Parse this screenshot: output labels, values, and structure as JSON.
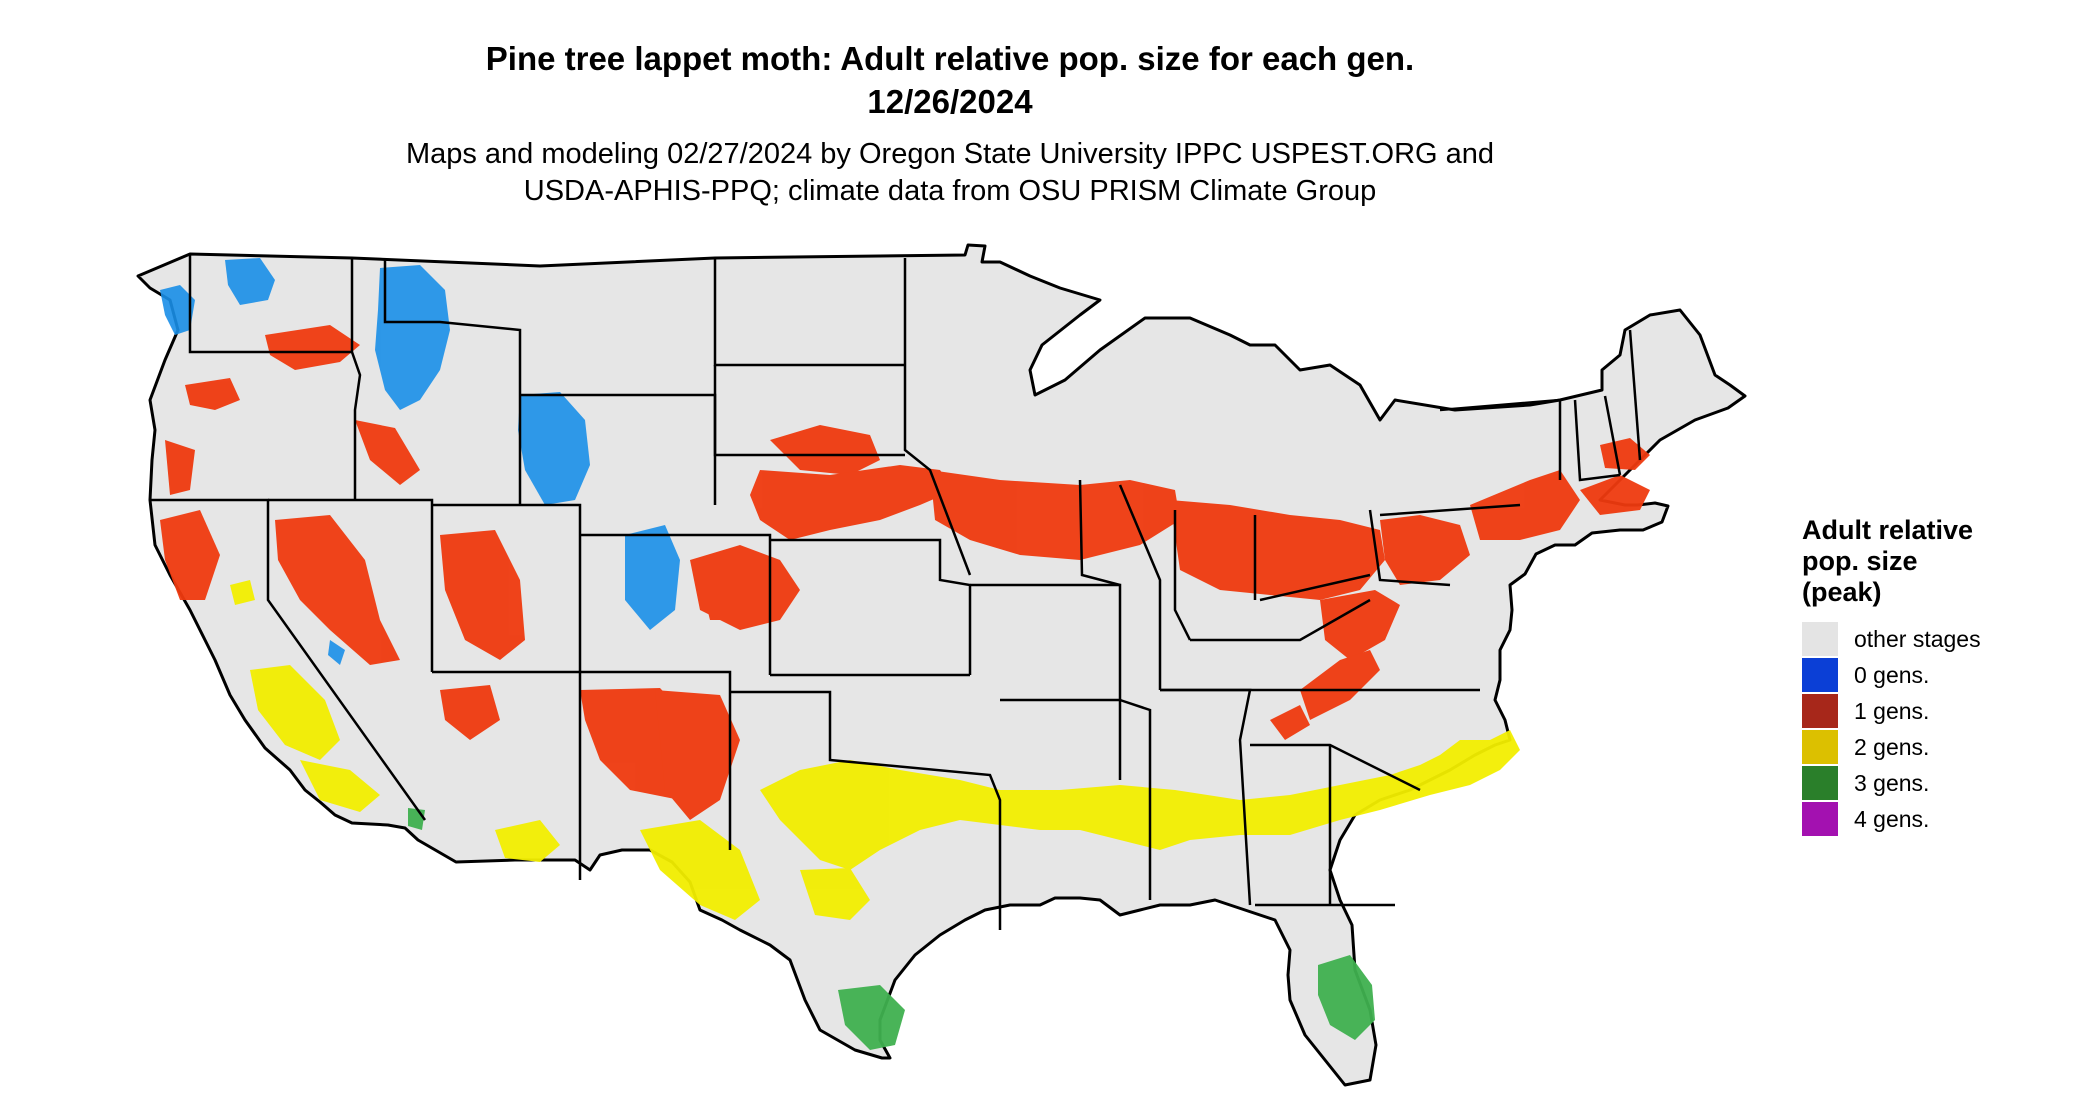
{
  "header": {
    "title_line1": "Pine tree lappet moth: Adult relative pop. size for each gen.",
    "title_line2": "12/26/2024",
    "subtitle_line1": "Maps and modeling 02/27/2024 by Oregon State University IPPC USPEST.ORG and",
    "subtitle_line2": "USDA-APHIS-PPQ; climate data from OSU PRISM Climate Group"
  },
  "map": {
    "region": "Contiguous United States",
    "base_color": "#e6e6e6",
    "border_color": "#000000",
    "bands": [
      {
        "generation": "0 gens.",
        "color": "#1a8fe8",
        "areas": [
          "Washington Cascades",
          "Idaho",
          "Montana Rockies",
          "Wyoming",
          "Colorado Rockies"
        ]
      },
      {
        "generation": "1 gens.",
        "color": "#ef3a0f",
        "areas": [
          "Oregon",
          "Nevada",
          "Utah",
          "Arizona",
          "New Mexico",
          "Nebraska",
          "Iowa",
          "Illinois",
          "Indiana",
          "Ohio",
          "Pennsylvania",
          "Kentucky",
          "Virginia",
          "New England"
        ]
      },
      {
        "generation": "2 gens.",
        "color": "#f2ee00",
        "areas": [
          "California",
          "Arizona",
          "Texas",
          "Oklahoma",
          "Arkansas",
          "Mississippi",
          "Alabama",
          "Georgia",
          "South Carolina",
          "North Carolina"
        ]
      },
      {
        "generation": "3 gens.",
        "color": "#3fb04f",
        "areas": [
          "South Texas",
          "South Florida"
        ]
      }
    ]
  },
  "legend": {
    "title_lines": [
      "Adult relative",
      "pop. size",
      "(peak)"
    ],
    "items": [
      {
        "label": "other stages",
        "color": "#e4e4e4"
      },
      {
        "label": "0 gens.",
        "color": "#0b3fd6"
      },
      {
        "label": "1 gens.",
        "color": "#a7271a"
      },
      {
        "label": "2 gens.",
        "color": "#dcc000"
      },
      {
        "label": "3 gens.",
        "color": "#2a7f2a"
      },
      {
        "label": "4 gens.",
        "color": "#a311b0"
      }
    ]
  }
}
